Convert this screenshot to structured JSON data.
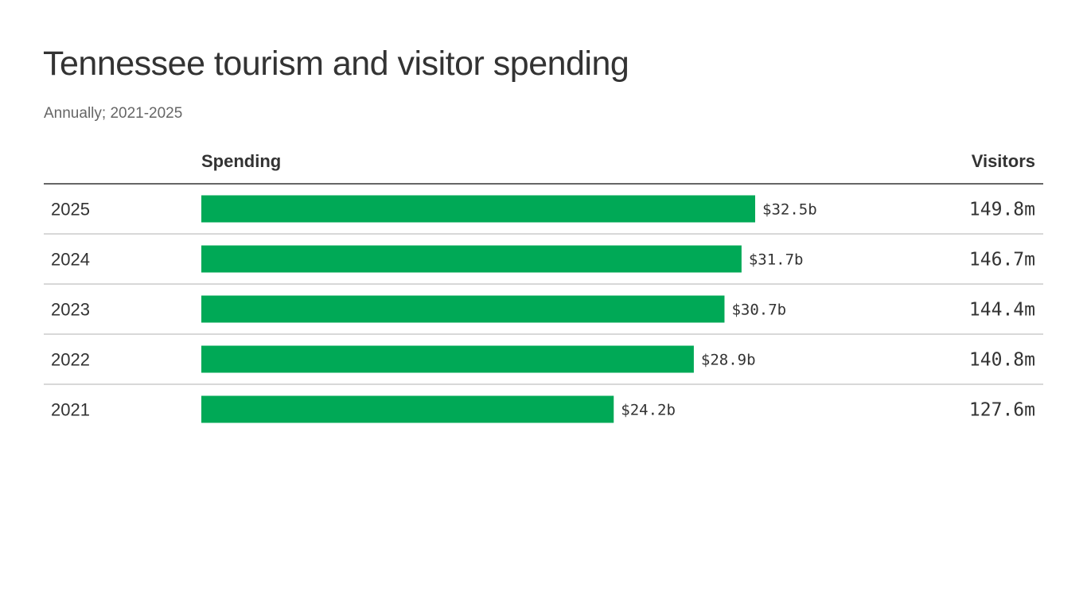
{
  "chart_data": {
    "type": "bar",
    "title": "Tennessee tourism and visitor spending",
    "subtitle": "Annually; 2021-2025",
    "columns": {
      "spending": "Spending",
      "visitors": "Visitors"
    },
    "categories": [
      "2025",
      "2024",
      "2023",
      "2022",
      "2021"
    ],
    "values": [
      32.5,
      31.7,
      30.7,
      28.9,
      24.2
    ],
    "value_labels": [
      "$32.5b",
      "$31.7b",
      "$30.7b",
      "$28.9b",
      "$24.2b"
    ],
    "visitors": [
      149.8,
      146.7,
      144.4,
      140.8,
      127.6
    ],
    "visitor_labels": [
      "149.8m",
      "146.7m",
      "144.4m",
      "140.8m",
      "127.6m"
    ],
    "bar_color": "#00A956",
    "header_rule_color": "#333333",
    "row_rule_color": "#cccccc"
  }
}
